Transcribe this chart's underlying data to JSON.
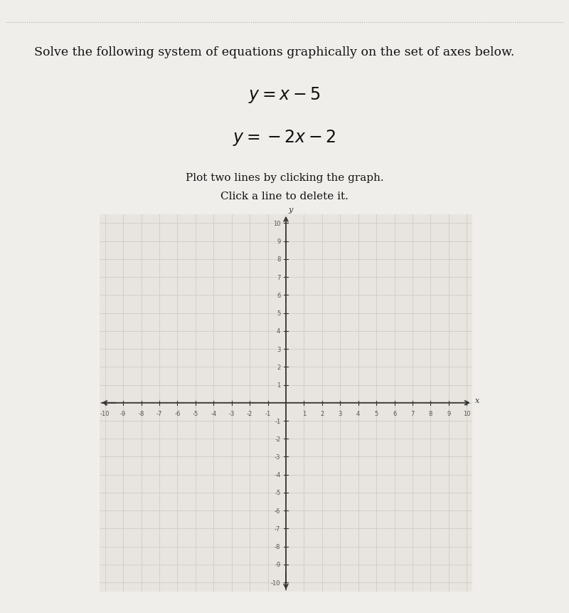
{
  "title_text": "Solve the following system of equations graphically on the set of axes below.",
  "eq1_latex": "$y = x - 5$",
  "eq2_latex": "$y = -2x - 2$",
  "instruction1": "Plot two lines by clicking the graph.",
  "instruction2": "Click a line to delete it.",
  "xlim": [
    -10,
    10
  ],
  "ylim": [
    -10,
    10
  ],
  "ticks": [
    -10,
    -9,
    -8,
    -7,
    -6,
    -5,
    -4,
    -3,
    -2,
    -1,
    1,
    2,
    3,
    4,
    5,
    6,
    7,
    8,
    9,
    10
  ],
  "page_bg": "#f0eeeb",
  "plot_bg": "#e8e4df",
  "grid_color": "#d0cbc4",
  "axis_color": "#333333",
  "tick_label_color": "#555555",
  "title_fontsize": 12.5,
  "eq_fontsize": 17,
  "instr_fontsize": 11,
  "tick_fontsize": 6,
  "dotted_line_color": "#aaaaaa"
}
